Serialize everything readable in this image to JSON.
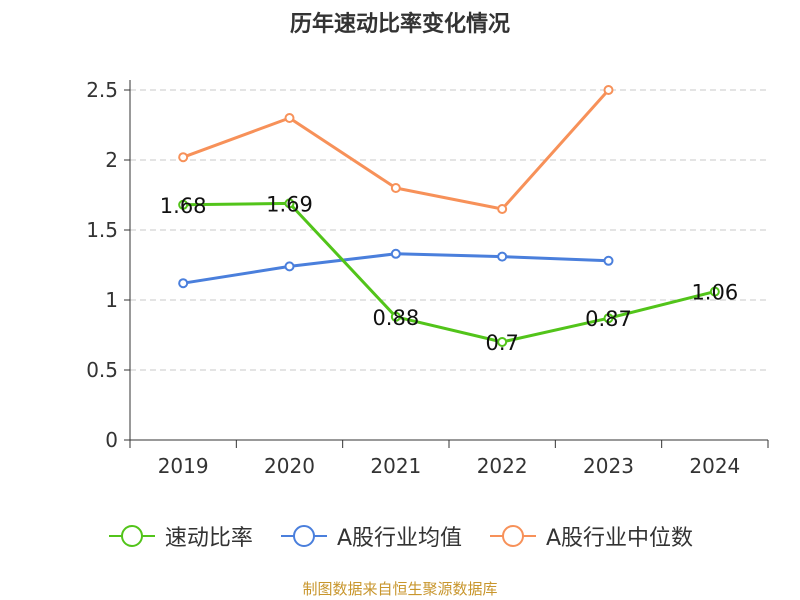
{
  "chart_data": {
    "type": "line",
    "title": "历年速动比率变化情况",
    "categories": [
      "2019",
      "2020",
      "2021",
      "2022",
      "2023",
      "2024"
    ],
    "series": [
      {
        "name": "速动比率",
        "color": "#52c41a",
        "values": [
          1.68,
          1.69,
          0.88,
          0.7,
          0.87,
          1.06
        ],
        "labels": [
          "1.68",
          "1.69",
          "0.88",
          "0.7",
          "0.87",
          "1.06"
        ]
      },
      {
        "name": "A股行业均值",
        "color": "#4a7fdc",
        "values": [
          1.12,
          1.24,
          1.33,
          1.31,
          1.28,
          null
        ]
      },
      {
        "name": "A股行业中位数",
        "color": "#f79159",
        "values": [
          2.02,
          2.3,
          1.8,
          1.65,
          2.5,
          null
        ]
      }
    ],
    "yticks": [
      "0",
      "0.5",
      "1",
      "1.5",
      "2",
      "2.5"
    ],
    "ylim": [
      0,
      2.5
    ],
    "grid": true,
    "legend_position": "bottom"
  },
  "source_text": "制图数据来自恒生聚源数据库"
}
